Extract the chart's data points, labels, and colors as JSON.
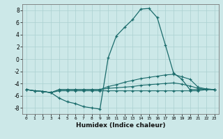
{
  "xlabel": "Humidex (Indice chaleur)",
  "bg_color": "#cce8e8",
  "line_color": "#1a6b6b",
  "xlim": [
    -0.5,
    23.5
  ],
  "ylim": [
    -9,
    9
  ],
  "xticks": [
    0,
    1,
    2,
    3,
    4,
    5,
    6,
    7,
    8,
    9,
    10,
    11,
    12,
    13,
    14,
    15,
    16,
    17,
    18,
    19,
    20,
    21,
    22,
    23
  ],
  "yticks": [
    -8,
    -6,
    -4,
    -2,
    0,
    2,
    4,
    6,
    8
  ],
  "line1_x": [
    0,
    1,
    2,
    3,
    4,
    5,
    6,
    7,
    8,
    9,
    10,
    11,
    12,
    13,
    14,
    15,
    16,
    17,
    18,
    19,
    20,
    21,
    22,
    23
  ],
  "line1_y": [
    -5.0,
    -5.2,
    -5.3,
    -5.5,
    -6.4,
    -7.0,
    -7.3,
    -7.8,
    -8.0,
    -8.2,
    0.2,
    3.8,
    5.2,
    6.5,
    8.2,
    8.3,
    6.8,
    2.3,
    -2.3,
    -3.3,
    -5.0,
    -5.0,
    -4.9,
    -5.0
  ],
  "line2_x": [
    0,
    1,
    2,
    3,
    4,
    5,
    6,
    7,
    8,
    9,
    10,
    11,
    12,
    13,
    14,
    15,
    16,
    17,
    18,
    19,
    20,
    21,
    22,
    23
  ],
  "line2_y": [
    -5.0,
    -5.2,
    -5.3,
    -5.5,
    -5.0,
    -5.0,
    -5.0,
    -5.0,
    -5.0,
    -5.0,
    -4.5,
    -4.2,
    -3.8,
    -3.5,
    -3.2,
    -3.0,
    -2.8,
    -2.6,
    -2.5,
    -2.9,
    -3.3,
    -4.6,
    -4.9,
    -5.0
  ],
  "line3_x": [
    0,
    1,
    2,
    3,
    4,
    5,
    6,
    7,
    8,
    9,
    10,
    11,
    12,
    13,
    14,
    15,
    16,
    17,
    18,
    19,
    20,
    21,
    22,
    23
  ],
  "line3_y": [
    -5.0,
    -5.2,
    -5.3,
    -5.5,
    -5.0,
    -5.0,
    -5.0,
    -5.0,
    -5.0,
    -5.0,
    -4.8,
    -4.7,
    -4.6,
    -4.5,
    -4.3,
    -4.2,
    -4.1,
    -4.0,
    -3.9,
    -4.1,
    -4.4,
    -4.8,
    -5.0,
    -5.0
  ],
  "line4_x": [
    0,
    1,
    2,
    3,
    4,
    5,
    6,
    7,
    8,
    9,
    10,
    11,
    12,
    13,
    14,
    15,
    16,
    17,
    18,
    19,
    20,
    21,
    22,
    23
  ],
  "line4_y": [
    -5.0,
    -5.2,
    -5.3,
    -5.5,
    -5.2,
    -5.2,
    -5.2,
    -5.2,
    -5.2,
    -5.2,
    -5.2,
    -5.2,
    -5.2,
    -5.2,
    -5.2,
    -5.2,
    -5.2,
    -5.2,
    -5.2,
    -5.2,
    -5.2,
    -5.2,
    -5.0,
    -5.0
  ]
}
